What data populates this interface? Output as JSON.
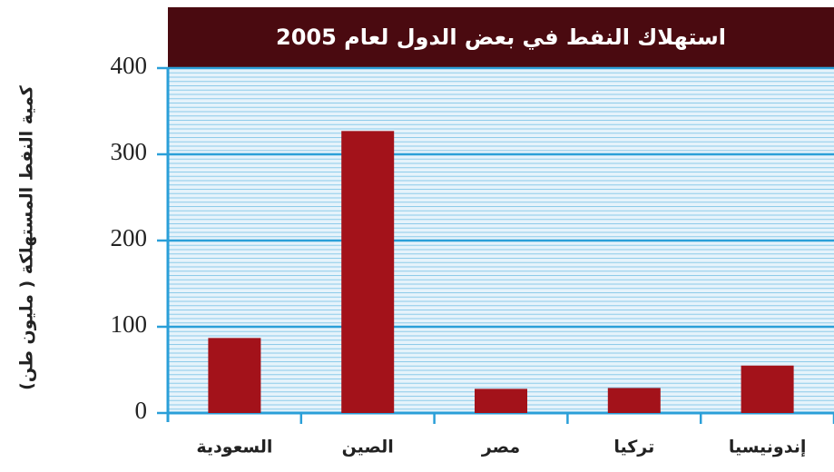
{
  "chart_data": {
    "type": "bar",
    "title": "استهلاك النفط في بعض الدول لعام 2005",
    "y_label": "كمية النفط المستهلكة ( مليون طن)",
    "categories": [
      "السعودية",
      "الصين",
      "مصر",
      "تركيا",
      "إندونيسيا"
    ],
    "values": [
      87,
      327,
      28,
      29,
      55
    ],
    "color": "#a3121a",
    "ylim": [
      0,
      400
    ],
    "yticks": [
      0,
      100,
      200,
      300,
      400
    ],
    "grid": true
  }
}
